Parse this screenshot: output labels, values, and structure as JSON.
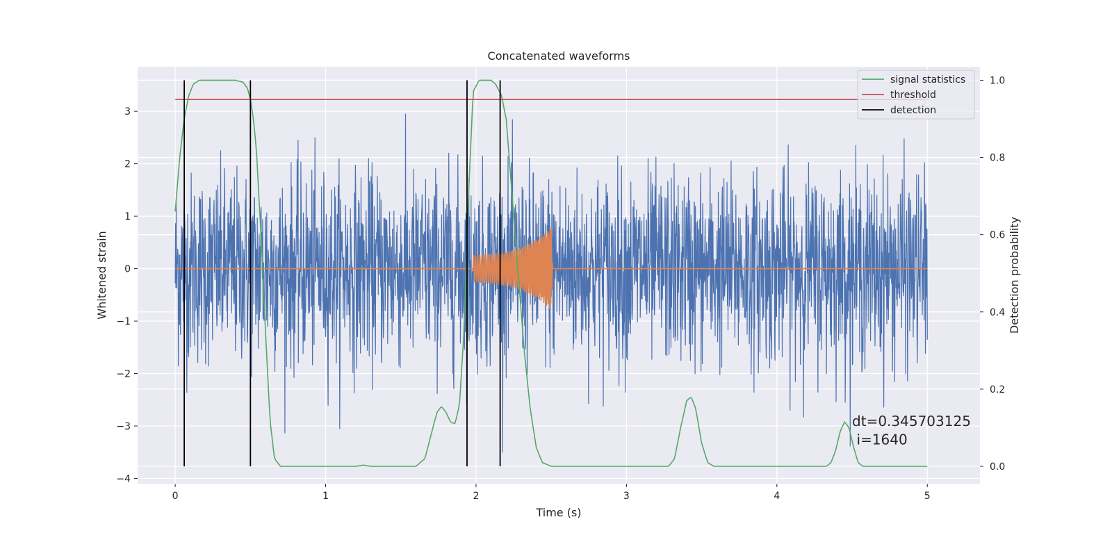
{
  "chart_data": {
    "type": "line",
    "title": "Concatenated waveforms",
    "xlabel": "Time (s)",
    "ylabel": "Whitened strain",
    "y2label": "Detection probability",
    "xlim": [
      -0.25,
      5.35
    ],
    "ylim": [
      -4.1,
      3.85
    ],
    "y2lim": [
      -0.045,
      1.035
    ],
    "x_ticks": [
      0,
      1,
      2,
      3,
      4,
      5
    ],
    "y_ticks": [
      -4,
      -3,
      -2,
      -1,
      0,
      1,
      2,
      3
    ],
    "y2_ticks": [
      0.0,
      0.2,
      0.4,
      0.6,
      0.8,
      1.0
    ],
    "x_tick_labels": [
      "0",
      "1",
      "2",
      "3",
      "4",
      "5"
    ],
    "y_tick_labels": [
      "−4",
      "−3",
      "−2",
      "−1",
      "0",
      "1",
      "2",
      "3"
    ],
    "y2_tick_labels": [
      "0.0",
      "0.2",
      "0.4",
      "0.6",
      "0.8",
      "1.0"
    ],
    "grid": true,
    "legend_position": "top-right",
    "series": [
      {
        "name": "",
        "axis": "left",
        "kind": "noise",
        "color": "#4c72b0",
        "x_range": [
          0,
          5
        ],
        "sigma": 0.9,
        "peak": 3.5
      },
      {
        "name": "",
        "axis": "left",
        "kind": "chirp",
        "color": "#dd8452",
        "x": [
          0,
          1.98,
          1.98,
          2.1,
          2.2,
          2.3,
          2.4,
          2.45,
          2.5,
          2.51,
          5
        ],
        "envelope": [
          0,
          0,
          0.25,
          0.28,
          0.32,
          0.4,
          0.55,
          0.65,
          0.8,
          0,
          0
        ]
      },
      {
        "name": "signal statistics",
        "axis": "right",
        "color": "#55a868",
        "x": [
          0.0,
          0.03,
          0.06,
          0.09,
          0.12,
          0.16,
          0.2,
          0.3,
          0.4,
          0.45,
          0.48,
          0.5,
          0.52,
          0.54,
          0.57,
          0.6,
          0.63,
          0.66,
          0.7,
          1.0,
          1.2,
          1.25,
          1.3,
          1.6,
          1.66,
          1.7,
          1.74,
          1.77,
          1.8,
          1.83,
          1.86,
          1.89,
          1.92,
          1.95,
          1.98,
          2.02,
          2.1,
          2.13,
          2.17,
          2.2,
          2.24,
          2.28,
          2.32,
          2.36,
          2.4,
          2.44,
          2.5,
          3.0,
          3.28,
          3.32,
          3.36,
          3.4,
          3.43,
          3.46,
          3.5,
          3.54,
          3.58,
          4.0,
          4.33,
          4.36,
          4.39,
          4.42,
          4.45,
          4.48,
          4.51,
          4.54,
          4.57,
          5.0
        ],
        "y": [
          0.66,
          0.8,
          0.9,
          0.96,
          0.99,
          1.0,
          1.0,
          1.0,
          1.0,
          0.995,
          0.98,
          0.95,
          0.9,
          0.82,
          0.6,
          0.35,
          0.12,
          0.02,
          0.0,
          0.0,
          0.0,
          0.003,
          0.0,
          0.0,
          0.02,
          0.08,
          0.14,
          0.155,
          0.14,
          0.115,
          0.11,
          0.16,
          0.35,
          0.7,
          0.97,
          1.0,
          1.0,
          0.99,
          0.96,
          0.9,
          0.7,
          0.5,
          0.3,
          0.15,
          0.05,
          0.01,
          0.0,
          0.0,
          0.0,
          0.02,
          0.1,
          0.17,
          0.18,
          0.15,
          0.06,
          0.01,
          0.0,
          0.0,
          0.0,
          0.01,
          0.04,
          0.09,
          0.115,
          0.1,
          0.05,
          0.01,
          0.0,
          0.0
        ]
      },
      {
        "name": "threshold",
        "axis": "right",
        "color": "#c44e52",
        "x": [
          0,
          5
        ],
        "y": [
          0.95,
          0.95
        ]
      }
    ],
    "detections": {
      "name": "detection",
      "color": "#000000",
      "x": [
        0.06,
        0.5,
        1.94,
        2.16
      ],
      "y_range": [
        0.0,
        1.0
      ]
    },
    "annotations": [
      {
        "text": "dt=0.345703125",
        "x": 4.5,
        "y": -3.0
      },
      {
        "text": "i=1640",
        "x": 4.53,
        "y": -3.35
      }
    ]
  }
}
